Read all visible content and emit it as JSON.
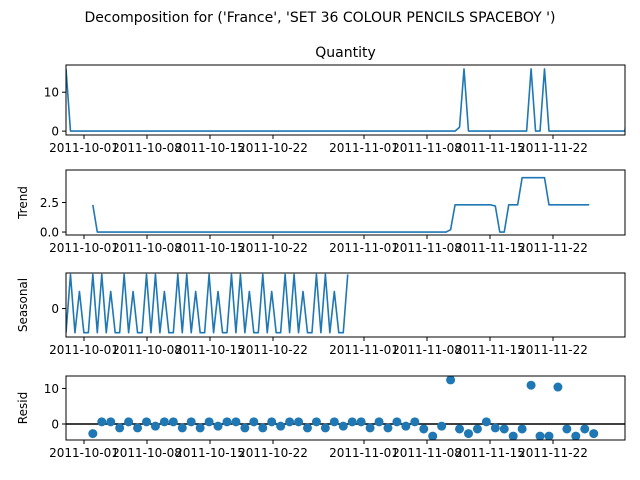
{
  "figure_title": "Decomposition for ('France', 'SET 36 COLOUR PENCILS SPACEBOY ')",
  "colors": {
    "series": "#1f77b4",
    "axis": "#000000",
    "zero_line": "#000000"
  },
  "chart_data": [
    {
      "type": "line",
      "title": "Quantity",
      "ylabel": "",
      "ylim": [
        -1,
        17
      ],
      "yticks": [
        0,
        10
      ],
      "ytick_labels": [
        "0",
        "10"
      ],
      "xtick_labels": [
        "2011-10-01",
        "2011-10-08",
        "2011-10-15",
        "2011-10-22",
        "2011-11-01",
        "2011-11-08",
        "2011-11-15",
        "2011-11-22"
      ],
      "series": [
        {
          "values": [
            16,
            0,
            0,
            0,
            0,
            0,
            0,
            0,
            0,
            0,
            0,
            0,
            0,
            0,
            0,
            0,
            0,
            0,
            0,
            0,
            0,
            0,
            0,
            0,
            0,
            0,
            0,
            0,
            0,
            0,
            0,
            0,
            0,
            0,
            0,
            0,
            0,
            0,
            0,
            0,
            0,
            0,
            0,
            0,
            0,
            0,
            0,
            0,
            0,
            0,
            0,
            0,
            0,
            0,
            0,
            0,
            0,
            0,
            0,
            0,
            0,
            0,
            0,
            0,
            0,
            0,
            0,
            0,
            0,
            0,
            0,
            0,
            0,
            0,
            0,
            0,
            0,
            0,
            0,
            0,
            0,
            0,
            0,
            0,
            0,
            0,
            0,
            0,
            1,
            16,
            0,
            0,
            0,
            0,
            0,
            0,
            0,
            0,
            0,
            0,
            0,
            0,
            0,
            0,
            16,
            0,
            0,
            16,
            0,
            0,
            0,
            0,
            0,
            0,
            0,
            0,
            0,
            0,
            0,
            0,
            0,
            0,
            0,
            0,
            0,
            0,
            16
          ]
        }
      ]
    },
    {
      "type": "line",
      "title": "",
      "ylabel": "Trend",
      "ylim": [
        -0.25,
        5.25
      ],
      "yticks": [
        0.0,
        2.5
      ],
      "ytick_labels": [
        "0.0",
        "2.5"
      ],
      "xtick_labels": [
        "2011-10-01",
        "2011-10-08",
        "2011-10-15",
        "2011-10-22",
        "2011-11-01",
        "2011-11-08",
        "2011-11-15",
        "2011-11-22"
      ],
      "series": [
        {
          "values": [
            null,
            null,
            null,
            null,
            null,
            null,
            2.3,
            0,
            0,
            0,
            0,
            0,
            0,
            0,
            0,
            0,
            0,
            0,
            0,
            0,
            0,
            0,
            0,
            0,
            0,
            0,
            0,
            0,
            0,
            0,
            0,
            0,
            0,
            0,
            0,
            0,
            0,
            0,
            0,
            0,
            0,
            0,
            0,
            0,
            0,
            0,
            0,
            0,
            0,
            0,
            0,
            0,
            0,
            0,
            0,
            0,
            0,
            0,
            0,
            0,
            0,
            0,
            0,
            0,
            0,
            0,
            0,
            0,
            0,
            0,
            0,
            0,
            0,
            0,
            0,
            0,
            0,
            0,
            0,
            0,
            0,
            0,
            0,
            0,
            0,
            0,
            0.2,
            2.3,
            2.3,
            2.3,
            2.3,
            2.3,
            2.3,
            2.3,
            2.3,
            2.3,
            2.2,
            0,
            0,
            2.3,
            2.3,
            2.3,
            4.6,
            4.6,
            4.6,
            4.6,
            4.6,
            4.6,
            2.3,
            2.3,
            2.3,
            2.3,
            2.3,
            2.3,
            2.3,
            2.3,
            2.3,
            2.3,
            null,
            null,
            null,
            null,
            null,
            null,
            null,
            null,
            null,
            null,
            null,
            null,
            null,
            null,
            null,
            null,
            null,
            null,
            null,
            null,
            null,
            null,
            null,
            null
          ]
        }
      ]
    },
    {
      "type": "line",
      "title": "",
      "ylabel": "Seasonal",
      "ylim": [
        -1.0,
        1.25
      ],
      "yticks": [
        0
      ],
      "ytick_labels": [
        "0"
      ],
      "xtick_labels": [
        "2011-10-01",
        "2011-10-08",
        "2011-10-15",
        "2011-10-22",
        "2011-11-01",
        "2011-11-08",
        "2011-11-15",
        "2011-11-22"
      ],
      "series": [
        {
          "values": [
            -0.85,
            1.2,
            -0.85,
            0.6,
            -0.85,
            -0.85,
            1.2,
            -0.85,
            1.2,
            -0.85,
            0.6,
            -0.85,
            -0.85,
            1.2,
            -0.85,
            0.6,
            -0.85,
            -0.85,
            1.2,
            -0.85,
            1.2,
            -0.85,
            0.6,
            -0.85,
            -0.85,
            1.2,
            -0.85,
            1.2,
            -0.85,
            0.6,
            -0.85,
            -0.85,
            1.2,
            -0.85,
            0.6,
            -0.85,
            -0.85,
            1.2,
            -0.85,
            1.2,
            -0.85,
            0.6,
            -0.85,
            -0.85,
            1.2,
            -0.85,
            0.6,
            -0.85,
            -0.85,
            1.2,
            -0.85,
            1.2,
            -0.85,
            0.6,
            -0.85,
            -0.85,
            1.2,
            -0.85,
            1.2,
            -0.85,
            0.6,
            -0.85,
            -0.85,
            1.2
          ]
        }
      ]
    },
    {
      "type": "scatter",
      "title": "",
      "ylabel": "Resid",
      "ylim": [
        -4.5,
        13.5
      ],
      "yticks": [
        0,
        10
      ],
      "ytick_labels": [
        "0",
        "10"
      ],
      "xtick_labels": [
        "2011-10-01",
        "2011-10-08",
        "2011-10-15",
        "2011-10-22",
        "2011-11-01",
        "2011-11-08",
        "2011-11-15",
        "2011-11-22"
      ],
      "zero_line": true,
      "series": [
        {
          "points": [
            [
              6,
              -2.7
            ],
            [
              8,
              0.6
            ],
            [
              10,
              0.6
            ],
            [
              12,
              -1.1
            ],
            [
              14,
              0.6
            ],
            [
              16,
              -1.1
            ],
            [
              18,
              0.6
            ],
            [
              20,
              -0.6
            ],
            [
              22,
              0.6
            ],
            [
              24,
              0.6
            ],
            [
              26,
              -1.1
            ],
            [
              28,
              0.6
            ],
            [
              30,
              -1.1
            ],
            [
              32,
              0.6
            ],
            [
              34,
              -0.6
            ],
            [
              36,
              0.6
            ],
            [
              38,
              0.6
            ],
            [
              40,
              -1.1
            ],
            [
              42,
              0.6
            ],
            [
              44,
              -1.1
            ],
            [
              46,
              0.6
            ],
            [
              48,
              -0.6
            ],
            [
              50,
              0.6
            ],
            [
              52,
              0.6
            ],
            [
              54,
              -1.1
            ],
            [
              56,
              0.6
            ],
            [
              58,
              -1.1
            ],
            [
              60,
              0.6
            ],
            [
              62,
              -0.6
            ],
            [
              64,
              0.6
            ],
            [
              66,
              0.6
            ],
            [
              68,
              -1.1
            ],
            [
              70,
              0.6
            ],
            [
              72,
              -1.1
            ],
            [
              74,
              0.6
            ],
            [
              76,
              -0.6
            ],
            [
              78,
              0.6
            ],
            [
              80,
              -1.4
            ],
            [
              82,
              -3.4
            ],
            [
              84,
              -0.6
            ],
            [
              86,
              12.4
            ],
            [
              88,
              -1.4
            ],
            [
              90,
              -2.7
            ],
            [
              92,
              -1.4
            ],
            [
              94,
              0.6
            ],
            [
              96,
              -1.1
            ],
            [
              98,
              -1.4
            ],
            [
              100,
              -3.4
            ],
            [
              102,
              -1.4
            ],
            [
              104,
              10.9
            ],
            [
              106,
              -3.4
            ],
            [
              108,
              -3.4
            ],
            [
              110,
              10.4
            ],
            [
              112,
              -1.4
            ],
            [
              114,
              -3.4
            ],
            [
              116,
              -1.4
            ],
            [
              118,
              -2.7
            ]
          ]
        }
      ]
    }
  ]
}
